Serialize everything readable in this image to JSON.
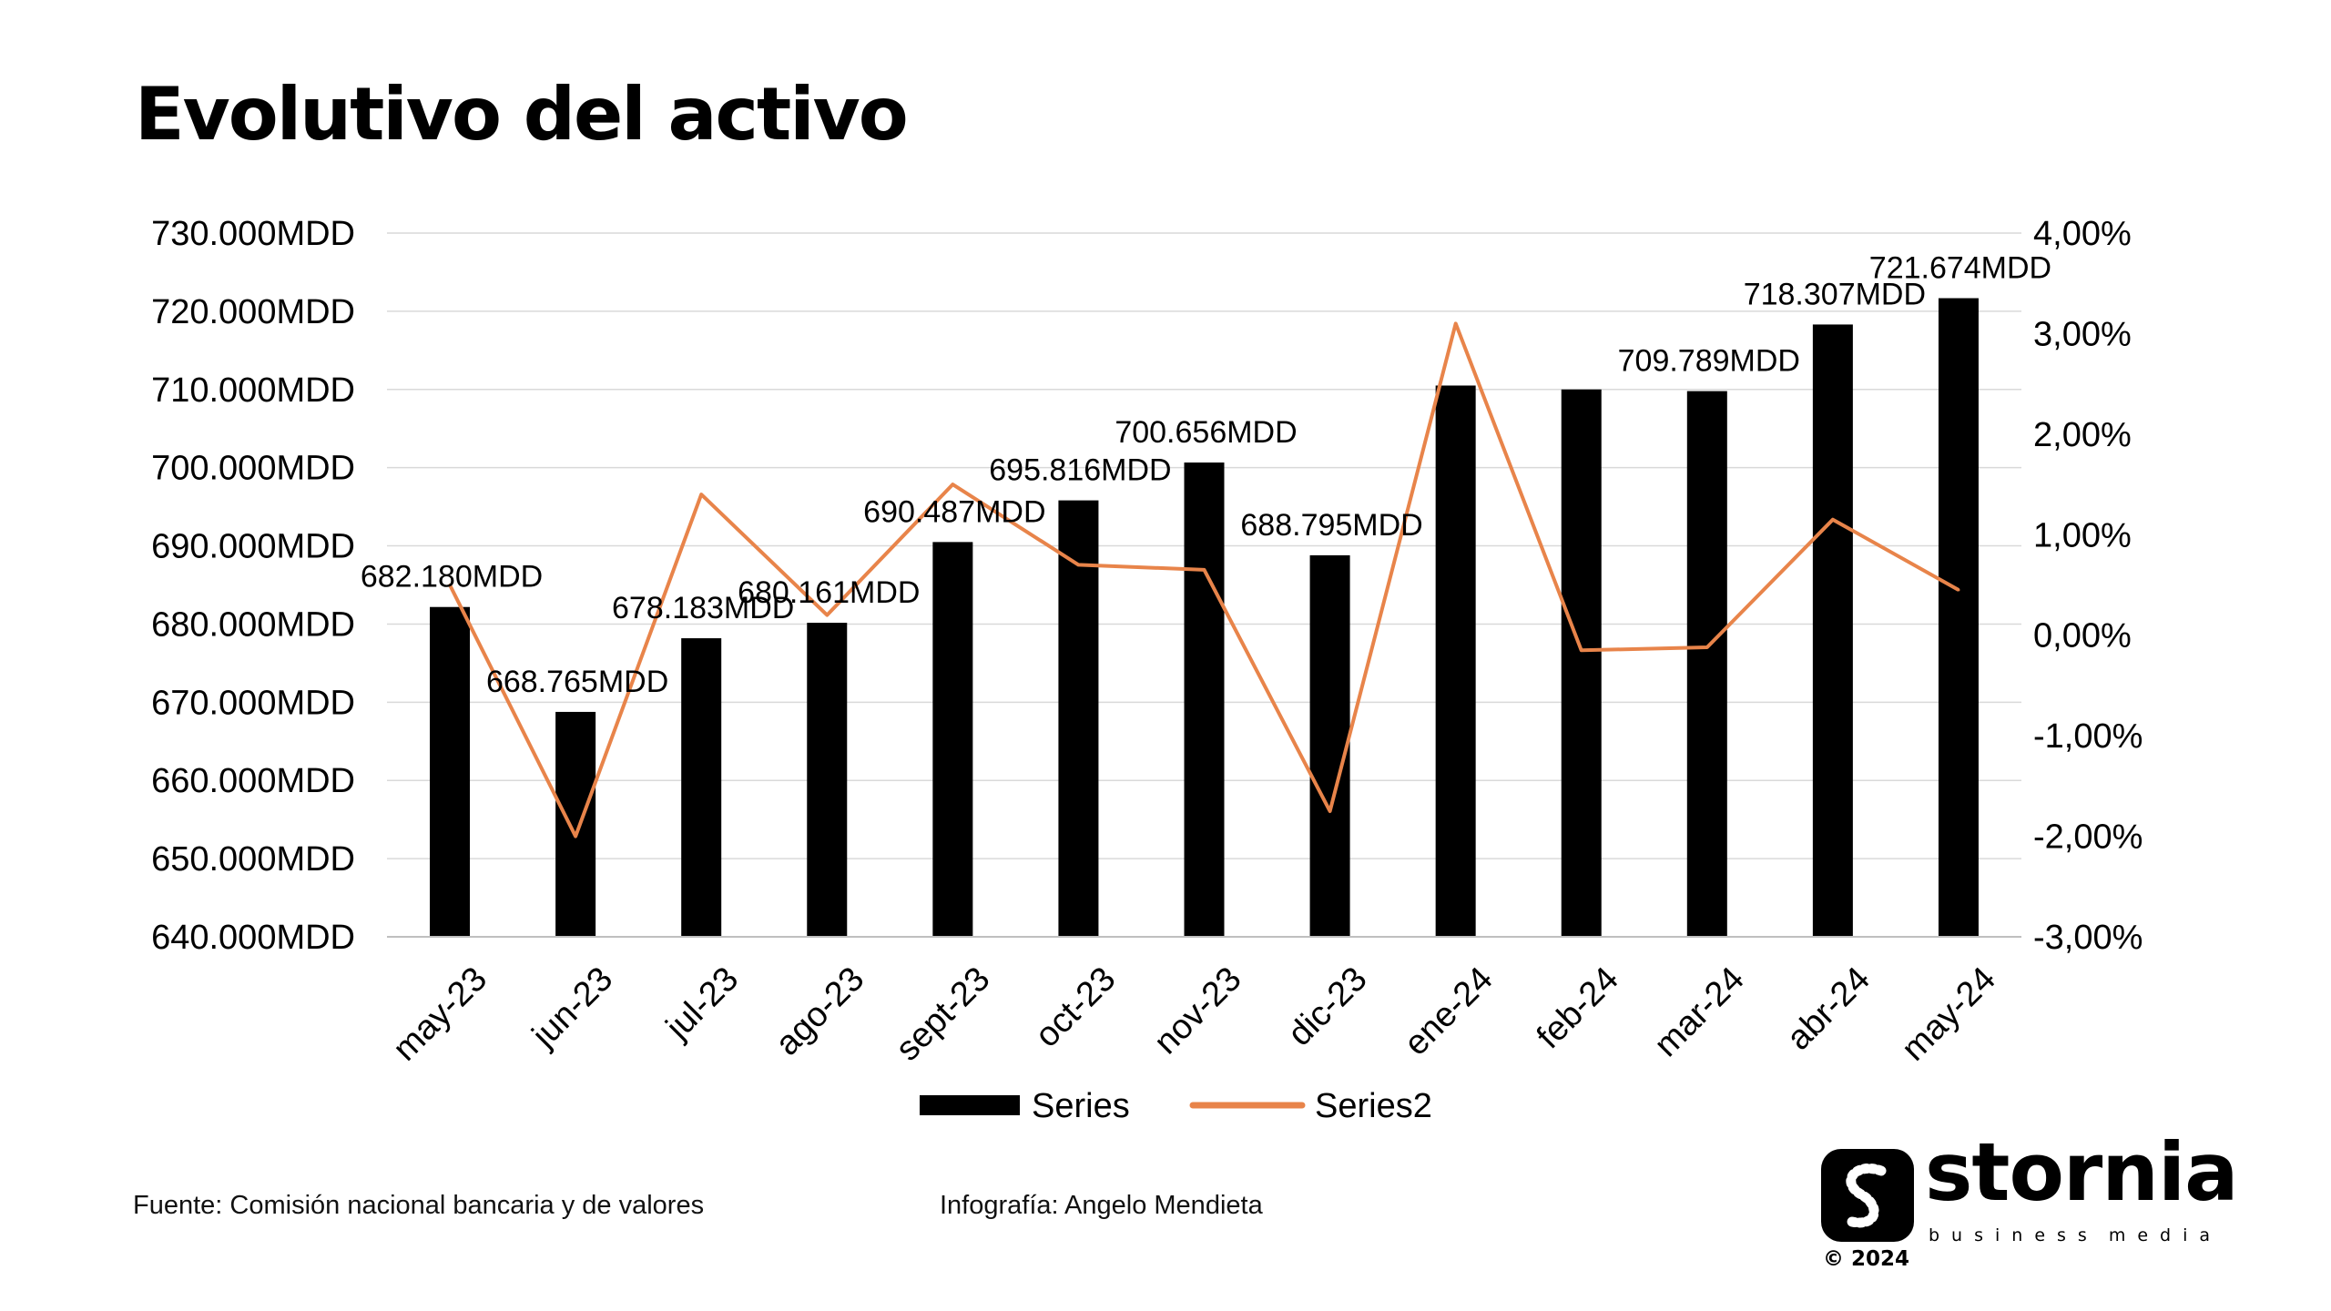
{
  "page": {
    "title": "Evolutivo del activo",
    "source": "Fuente: Comisión nacional bancaria y de valores",
    "credit": "Infografía: Angelo Mendieta"
  },
  "brand": {
    "name": "stornia",
    "tagline_left": "business",
    "tagline_right": "media",
    "copyright": "© 2024"
  },
  "chart_data": {
    "type": "bar",
    "categories": [
      "may-23",
      "jun-23",
      "jul-23",
      "ago-23",
      "sept-23",
      "oct-23",
      "nov-23",
      "dic-23",
      "ene-24",
      "feb-24",
      "mar-24",
      "abr-24",
      "may-24"
    ],
    "series": [
      {
        "name": "Series",
        "type": "bar",
        "axis": "left",
        "color": "#000000",
        "values": [
          682180,
          668765,
          678183,
          680161,
          690487,
          695816,
          700656,
          688795,
          710500,
          710000,
          709789,
          718307,
          721674
        ],
        "data_labels": [
          "682.180MDD",
          "668.765MDD",
          "678.183MDD",
          "680.161MDD",
          "690.487MDD",
          "695.816MDD",
          "700.656MDD",
          "688.795MDD",
          "",
          "",
          "709.789MDD",
          "718.307MDD",
          "721.674MDD"
        ]
      },
      {
        "name": "Series2",
        "type": "line",
        "axis": "right",
        "color": "#E8844A",
        "values": [
          0.5,
          -2.0,
          1.4,
          0.2,
          1.5,
          0.7,
          0.65,
          -1.75,
          3.1,
          -0.15,
          -0.12,
          1.15,
          0.45
        ]
      }
    ],
    "y_left": {
      "min": 640000,
      "max": 730000,
      "ticks": [
        640000,
        650000,
        660000,
        670000,
        680000,
        690000,
        700000,
        710000,
        720000,
        730000
      ],
      "tick_labels": [
        "640.000MDD",
        "650.000MDD",
        "660.000MDD",
        "670.000MDD",
        "680.000MDD",
        "690.000MDD",
        "700.000MDD",
        "710.000MDD",
        "720.000MDD",
        "730.000MDD"
      ]
    },
    "y_right": {
      "min": -3,
      "max": 4,
      "ticks": [
        -3,
        -2,
        -1,
        0,
        1,
        2,
        3,
        4
      ],
      "tick_labels": [
        "-3,00%",
        "-2,00%",
        "-1,00%",
        "0,00%",
        "1,00%",
        "2,00%",
        "3,00%",
        "4,00%"
      ]
    },
    "gridlines": true,
    "legend": "bottom",
    "legend_labels": [
      "Series",
      "Series2"
    ]
  }
}
